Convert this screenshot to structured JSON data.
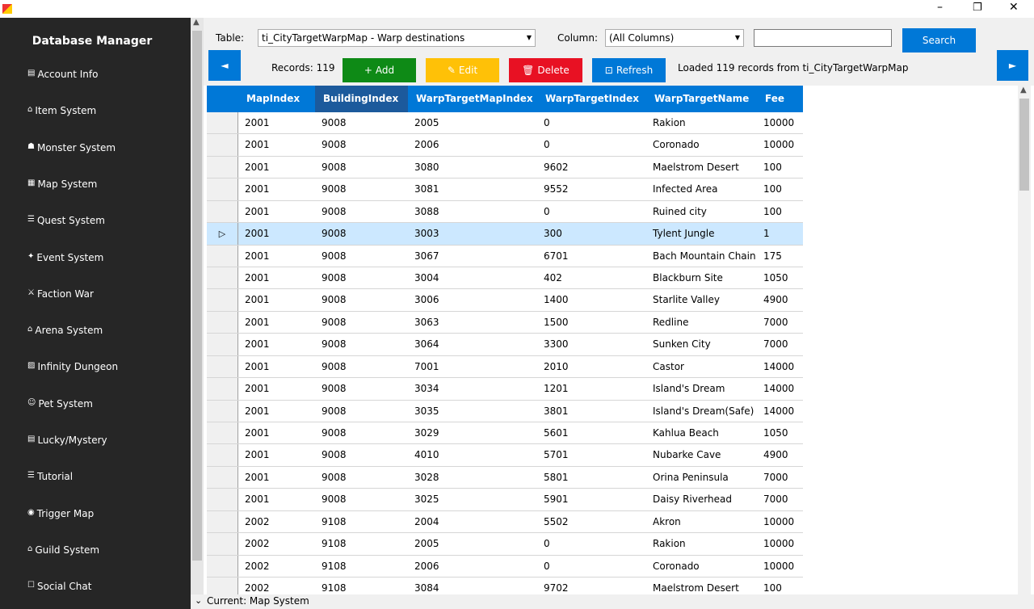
{
  "sidebar": {
    "title": "Database Manager",
    "items": [
      "Account Info",
      "Item System",
      "Monster System",
      "Map System",
      "Quest System",
      "Event System",
      "Faction War",
      "Arena System",
      "Infinity Dungeon",
      "Pet System",
      "Lucky/Mystery",
      "Tutorial",
      "Trigger  Map",
      "Guild System",
      "Social  Chat"
    ]
  },
  "toolbar": {
    "table_label": "Table:",
    "table_value": "ti_CityTargetWarpMap - Warp destinations",
    "column_label": "Column:",
    "column_value": "(All Columns)",
    "search_button": "Search",
    "records": "Records: 119",
    "add": "Add",
    "edit": "Edit",
    "delete": "Delete",
    "refresh": "Refresh",
    "status": "Loaded 119 records from ti_CityTargetWarpMap"
  },
  "table": {
    "columns": [
      "MapIndex",
      "BuildingIndex",
      "WarpTargetMapIndex",
      "WarpTargetIndex",
      "WarpTargetName",
      "Fee"
    ],
    "rows": [
      [
        "2001",
        "9008",
        "2005",
        "0",
        "Rakion",
        "10000"
      ],
      [
        "2001",
        "9008",
        "2006",
        "0",
        "Coronado",
        "10000"
      ],
      [
        "2001",
        "9008",
        "3080",
        "9602",
        "Maelstrom Desert",
        "100"
      ],
      [
        "2001",
        "9008",
        "3081",
        "9552",
        "Infected Area",
        "100"
      ],
      [
        "2001",
        "9008",
        "3088",
        "0",
        "Ruined city",
        "100"
      ],
      [
        "2001",
        "9008",
        "3003",
        "300",
        "Tylent Jungle",
        "1"
      ],
      [
        "2001",
        "9008",
        "3067",
        "6701",
        "Bach Mountain Chain",
        "175"
      ],
      [
        "2001",
        "9008",
        "3004",
        "402",
        "Blackburn Site",
        "1050"
      ],
      [
        "2001",
        "9008",
        "3006",
        "1400",
        "Starlite Valley",
        "4900"
      ],
      [
        "2001",
        "9008",
        "3063",
        "1500",
        "Redline",
        "7000"
      ],
      [
        "2001",
        "9008",
        "3064",
        "3300",
        "Sunken City",
        "7000"
      ],
      [
        "2001",
        "9008",
        "7001",
        "2010",
        "Castor",
        "14000"
      ],
      [
        "2001",
        "9008",
        "3034",
        "1201",
        "Island's Dream",
        "14000"
      ],
      [
        "2001",
        "9008",
        "3035",
        "3801",
        "Island's Dream(Safe)",
        "14000"
      ],
      [
        "2001",
        "9008",
        "3029",
        "5601",
        "Kahlua Beach",
        "1050"
      ],
      [
        "2001",
        "9008",
        "4010",
        "5701",
        "Nubarke Cave",
        "4900"
      ],
      [
        "2001",
        "9008",
        "3028",
        "5801",
        "Orina Peninsula",
        "7000"
      ],
      [
        "2001",
        "9008",
        "3025",
        "5901",
        "Daisy Riverhead",
        "7000"
      ],
      [
        "2002",
        "9108",
        "2004",
        "5502",
        "Akron",
        "10000"
      ],
      [
        "2002",
        "9108",
        "2005",
        "0",
        "Rakion",
        "10000"
      ],
      [
        "2002",
        "9108",
        "2006",
        "0",
        "Coronado",
        "10000"
      ],
      [
        "2002",
        "9108",
        "3084",
        "9702",
        "Maelstrom Desert",
        "100"
      ]
    ]
  },
  "status_bar": "Current: Map System"
}
